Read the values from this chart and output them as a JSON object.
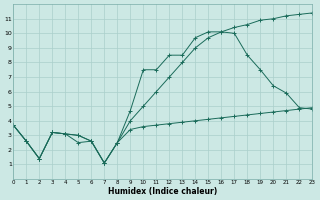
{
  "xlabel": "Humidex (Indice chaleur)",
  "bg_color": "#cce8e4",
  "grid_color": "#aacfcb",
  "line_color": "#1a6b5a",
  "xlim": [
    0,
    23
  ],
  "ylim": [
    0,
    12
  ],
  "xticks": [
    0,
    1,
    2,
    3,
    4,
    5,
    6,
    7,
    8,
    9,
    10,
    11,
    12,
    13,
    14,
    15,
    16,
    17,
    18,
    19,
    20,
    21,
    22,
    23
  ],
  "yticks": [
    1,
    2,
    3,
    4,
    5,
    6,
    7,
    8,
    9,
    10,
    11
  ],
  "line1_x": [
    0,
    1,
    2,
    3,
    4,
    5,
    6,
    7,
    8,
    9,
    10,
    11,
    12,
    13,
    14,
    15,
    16,
    17,
    18,
    19,
    20,
    21,
    22,
    23
  ],
  "line1_y": [
    3.7,
    2.6,
    1.4,
    3.2,
    3.1,
    3.0,
    2.6,
    1.1,
    2.5,
    4.0,
    5.0,
    6.0,
    7.0,
    8.0,
    9.0,
    9.7,
    10.1,
    10.4,
    10.6,
    10.9,
    11.0,
    11.2,
    11.3,
    11.4
  ],
  "line2_x": [
    0,
    1,
    2,
    3,
    4,
    5,
    6,
    7,
    8,
    9,
    10,
    11,
    12,
    13,
    14,
    15,
    16,
    17,
    18,
    19,
    20,
    21,
    22,
    23
  ],
  "line2_y": [
    3.7,
    2.6,
    1.4,
    3.2,
    3.1,
    3.0,
    2.6,
    1.1,
    2.5,
    4.7,
    7.5,
    7.5,
    8.5,
    8.5,
    9.7,
    10.1,
    10.1,
    10.0,
    8.5,
    7.5,
    6.4,
    5.9,
    4.9,
    4.8
  ],
  "line3_x": [
    0,
    1,
    2,
    3,
    4,
    5,
    6,
    7,
    8,
    9,
    10,
    11,
    12,
    13,
    14,
    15,
    16,
    17,
    18,
    19,
    20,
    21,
    22,
    23
  ],
  "line3_y": [
    3.7,
    2.6,
    1.4,
    3.2,
    3.1,
    2.5,
    2.6,
    1.1,
    2.5,
    3.4,
    3.6,
    3.7,
    3.8,
    3.9,
    4.0,
    4.1,
    4.2,
    4.3,
    4.4,
    4.5,
    4.6,
    4.7,
    4.8,
    4.9
  ]
}
